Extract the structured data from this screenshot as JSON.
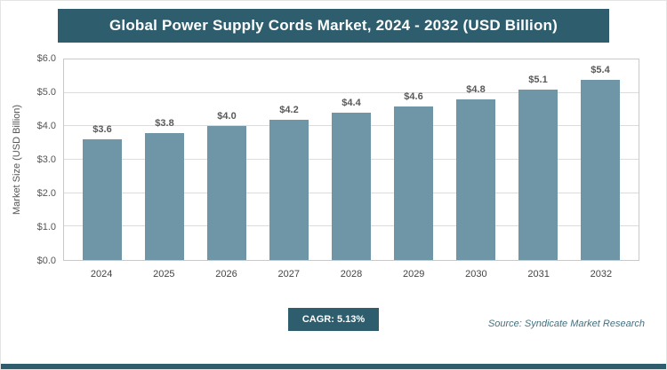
{
  "header": {
    "title": "Global Power Supply Cords Market, 2024 - 2032 (USD Billion)"
  },
  "chart_data": {
    "type": "bar",
    "title": "Global Power Supply Cords Market, 2024 - 2032 (USD Billion)",
    "categories": [
      "2024",
      "2025",
      "2026",
      "2027",
      "2028",
      "2029",
      "2030",
      "2031",
      "2032"
    ],
    "values": [
      3.6,
      3.8,
      4.0,
      4.2,
      4.4,
      4.6,
      4.8,
      5.1,
      5.4
    ],
    "value_labels": [
      "$3.6",
      "$3.8",
      "$4.0",
      "$4.2",
      "$4.4",
      "$4.6",
      "$4.8",
      "$5.1",
      "$5.4"
    ],
    "xlabel": "",
    "ylabel": "Market Size (USD Billion)",
    "ylim": [
      0,
      6
    ],
    "ytick_step": 1,
    "ytick_labels": [
      "$0.0",
      "$1.0",
      "$2.0",
      "$3.0",
      "$4.0",
      "$5.0",
      "$6.0"
    ],
    "grid": true,
    "legend": false,
    "bar_color": "#6e96a6"
  },
  "footer": {
    "cagr_label": "CAGR: 5.13%",
    "source": "Source: Syndicate Market Research"
  },
  "colors": {
    "accent_dark": "#2e5e6e",
    "bar": "#6e96a6",
    "grid": "#dcdcdc"
  }
}
